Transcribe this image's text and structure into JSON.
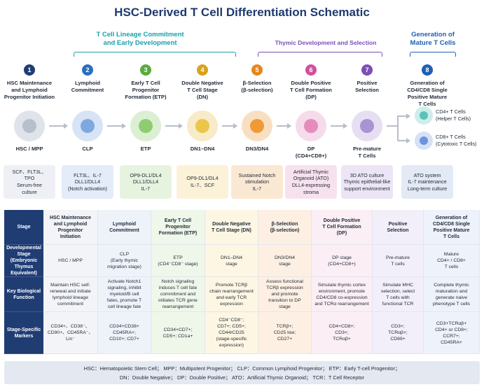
{
  "title": "HSC-Derived T Cell Differentiation Schematic",
  "phases": [
    {
      "label_line1": "T Cell Lineage Commitment",
      "label_line2": "and Early Development",
      "color": "#1aa0a8"
    },
    {
      "label_line1": "Thymic Development and Selection",
      "label_line2": "",
      "color": "#7b4fb5"
    },
    {
      "label_line1": "Generation of",
      "label_line2": "Mature T Cells",
      "color": "#1f5fb3"
    }
  ],
  "stages": [
    {
      "num": "1",
      "name": [
        "HSC Maintenance",
        "and Lymphoid",
        "Progenitor Initiation"
      ],
      "cell": "HSC / MPP",
      "cell2": "",
      "cond": [
        "SCF、FLT3L、",
        "TPO",
        "Serum-free",
        "culture"
      ],
      "color": "#1f3d73",
      "outer": "#dfe3ea",
      "inner": "#b8bfcc",
      "cond_bg": "#eef0f5"
    },
    {
      "num": "2",
      "name": [
        "Lymphoid",
        "Commitment"
      ],
      "cell": "CLP",
      "cell2": "",
      "cond": [
        "FLT3L、IL-7",
        "DLL1/DLL4",
        "(Notch activation)"
      ],
      "color": "#2a6fc0",
      "outer": "#d6e4f5",
      "inner": "#7fa8e0",
      "cond_bg": "#e3ecf8"
    },
    {
      "num": "3",
      "name": [
        "Early T Cell",
        "Progenitor",
        "Formation (ETP)"
      ],
      "cell": "ETP",
      "cell2": "",
      "cond": [
        "OP9-DL1/DL4",
        "DLL1/DLL4",
        "IL-7"
      ],
      "color": "#5aab3d",
      "outer": "#dcefd3",
      "inner": "#8fcc70",
      "cond_bg": "#e6f3df"
    },
    {
      "num": "4",
      "name": [
        "Double Negative",
        "T Cell Stage",
        "(DN)"
      ],
      "cell": "DN1–DN4",
      "cell2": "",
      "cond": [
        "OP9-DL1/DL4",
        "IL-7、SCF"
      ],
      "color": "#d9a21a",
      "outer": "#f7ebc8",
      "inner": "#ecc64a",
      "cond_bg": "#fbf2d8"
    },
    {
      "num": "5",
      "name": [
        "β-Selection",
        "(β-selection)"
      ],
      "cell": "DN3/DN4",
      "cell2": "",
      "cond": [
        "Sustained Notch",
        "stimulation",
        "IL-7"
      ],
      "color": "#e6861c",
      "outer": "#f9dfc2",
      "inner": "#ee9a35",
      "cond_bg": "#fbe8d3"
    },
    {
      "num": "6",
      "name": [
        "Double Positive",
        "T Cell Formation",
        "(DP)"
      ],
      "cell": "DP",
      "cell2": "(CD4+CD8+)",
      "cond": [
        "Artificial Thymic",
        "Organoid (ATO)",
        "DLL4-expressing",
        "stroma"
      ],
      "color": "#d0509a",
      "outer": "#f6dbea",
      "inner": "#e58cbd",
      "cond_bg": "#f8e1ee"
    },
    {
      "num": "7",
      "name": [
        "Positive",
        "Selection"
      ],
      "cell": "Pre-mature",
      "cell2": "T Cells",
      "cond": [
        "3D ATO culture",
        "Thymic epithelial-like",
        "support environment"
      ],
      "color": "#7b4fb5",
      "outer": "#e6dff2",
      "inner": "#a894d2",
      "cond_bg": "#ece5f5"
    },
    {
      "num": "8",
      "name": [
        "Generation of",
        "CD4/CD8 Single",
        "Positive Mature",
        "T Cells"
      ],
      "cell": "",
      "cell2": "",
      "cond": [
        "ATO system",
        "IL-7 maintenance",
        "Long-term culture"
      ],
      "color": "#1f5fb3",
      "outer": "",
      "inner": "",
      "cond_bg": "#e3e9f5"
    }
  ],
  "mature": [
    {
      "line1": "CD4+ T Cells",
      "line2": "(Helper T Cells)",
      "outer": "#cdeeea",
      "inner": "#5cc2b7"
    },
    {
      "line1": "CD8+ T Cells",
      "line2": "(Cytotoxic T Cells)",
      "outer": "#d6e1f5",
      "inner": "#6d93dd"
    }
  ],
  "table": {
    "row_headers": [
      [
        "Stage"
      ],
      [
        "Developmental",
        "Stage",
        "(Embryonic",
        "Thymus",
        "Equivalent)"
      ],
      [
        "Key Biological",
        "Function"
      ],
      [
        "Stage-Specific",
        "Markers"
      ]
    ],
    "columns": [
      {
        "bg": "#f3f4f7",
        "cells": [
          [
            "HSC Maintenance",
            "and Lymphoid",
            "Progenitor",
            "Initiation"
          ],
          [
            "HSC / MPP"
          ],
          [
            "Maintain HSC self-",
            "renewal and initiate",
            "lymphoid lineage",
            "commitment"
          ],
          [
            "CD34+、CD38⁻、",
            "CD90+、CD45RA⁻、",
            "Lin⁻"
          ]
        ]
      },
      {
        "bg": "#eef3fa",
        "cells": [
          [
            "Lymphoid",
            "Commitment"
          ],
          [
            "CLP",
            "(Early thymic",
            "migration stage)"
          ],
          [
            "Activate Notch1",
            "signaling, inhibit",
            "myeloid/B cell",
            "fates, promote T",
            "cell lineage fate"
          ],
          [
            "CD34+CD38+",
            "CD45RA+;",
            "CD10+; CD7+"
          ]
        ]
      },
      {
        "bg": "#eff7ea",
        "cells": [
          [
            "Early T Cell",
            "Progenitor",
            "Formation (ETP)"
          ],
          [
            "ETP",
            "(CD4⁻CD8⁻ stage)"
          ],
          [
            "Notch signaling",
            "induces T cell fate",
            "commitment and",
            "initiates TCR gene",
            "rearrangement"
          ],
          [
            "CD34+CD7+;",
            "CD5+; CD1a+"
          ]
        ]
      },
      {
        "bg": "#fdf6e3",
        "cells": [
          [
            "Double Negative",
            "T Cell Stage (DN)"
          ],
          [
            "DN1–DN4",
            "stage"
          ],
          [
            "Promote TCRβ",
            "chain rearrangement",
            "and early TCR",
            "expression"
          ],
          [
            "CD4⁻CD8⁻;",
            "CD7+; CD5+;",
            "CD44/CD25",
            "(stage-specific",
            "expression)"
          ]
        ]
      },
      {
        "bg": "#fdf0e3",
        "cells": [
          [
            "β-Selection",
            "(β-selection)"
          ],
          [
            "DN3/DN4",
            "stage"
          ],
          [
            "Assess functional",
            "TCRβ expression",
            "and promote",
            "transition to DP",
            "stage"
          ],
          [
            "TCRβ+;",
            "CD25 low;",
            "CD27+"
          ]
        ]
      },
      {
        "bg": "#fbeef5",
        "cells": [
          [
            "Double Positive",
            "T Cell Formation",
            "(DP)"
          ],
          [
            "DP stage",
            "(CD4+CD8+)"
          ],
          [
            "Simulate thymic cortex",
            "environment, promote",
            "CD4/CD8 co-expression",
            "and TCRα rearrangement"
          ],
          [
            "CD4+CD8+;",
            "CD3+;",
            "TCRαβ+"
          ]
        ]
      },
      {
        "bg": "#f3effa",
        "cells": [
          [
            "Positive",
            "Selection"
          ],
          [
            "Pre-mature",
            "T cells"
          ],
          [
            "Simulate MHC",
            "selection, select",
            "T cells with",
            "functional TCR"
          ],
          [
            "CD3+;",
            "TCRαβ+;",
            "CD69+"
          ]
        ]
      },
      {
        "bg": "#eef2fa",
        "cells": [
          [
            "Generation of",
            "CD4/CD8 Single",
            "Positive Mature",
            "T Cells"
          ],
          [
            "Mature",
            "CD4+ / CD8+",
            "T cells"
          ],
          [
            "Complete thymic",
            "maturation and",
            "generate naive",
            "phenotype T cells"
          ],
          [
            "CD3+TCRαβ+",
            "CD4+ or CD8+;",
            "CCR7+;",
            "CD45RA+"
          ]
        ]
      }
    ]
  },
  "footer": {
    "line1": "HSC：Hematopoietic Stem Cell；  MPP：Multipotent Progenitor；  CLP：Common Lymphoid Progenitor；  ETP：Early T-cell Progenitor；",
    "line2": "DN：Double Negative；  DP：Double Positive；  ATO：Artificial Thymic Organoid；  TCR：T Cell Receptor"
  }
}
